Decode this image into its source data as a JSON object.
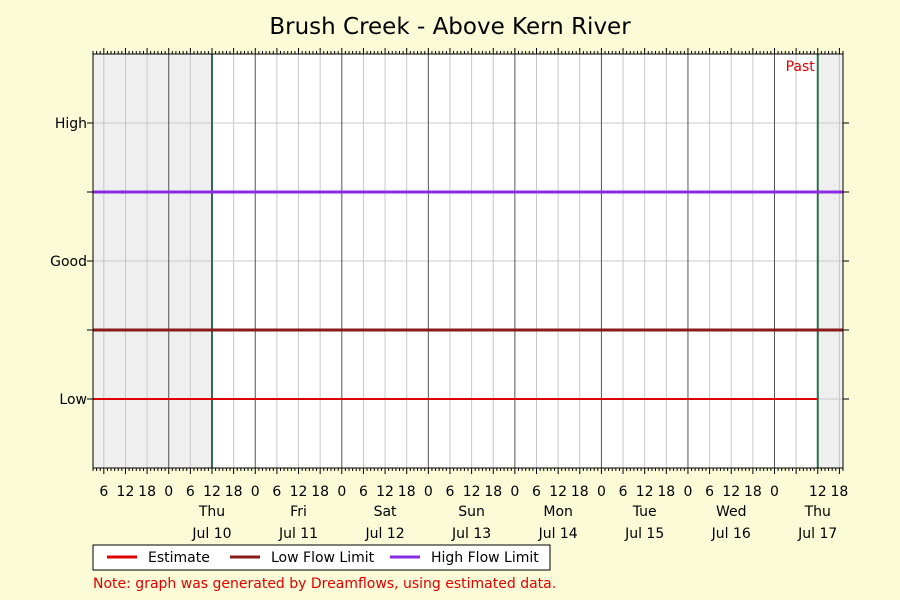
{
  "chart_data": {
    "type": "line",
    "title": "Brush Creek - Above Kern River",
    "x_axis": {
      "unit": "hours",
      "start": "2025-07-09T03:00",
      "end": "2025-07-17T19:00",
      "major_ticks": [
        "6",
        "12",
        "18",
        "0",
        "6",
        "12",
        "18",
        "0",
        "6",
        "12",
        "18",
        "0",
        "6",
        "12",
        "18",
        "0",
        "6",
        "12",
        "18",
        "0",
        "6",
        "12",
        "18",
        "0",
        "6",
        "12",
        "18",
        "0",
        "6",
        "12",
        "18",
        "0",
        "12",
        "18"
      ],
      "day_labels": [
        {
          "weekday": "Thu",
          "date": "Jul 10"
        },
        {
          "weekday": "Fri",
          "date": "Jul 11"
        },
        {
          "weekday": "Sat",
          "date": "Jul 12"
        },
        {
          "weekday": "Sun",
          "date": "Jul 13"
        },
        {
          "weekday": "Mon",
          "date": "Jul 14"
        },
        {
          "weekday": "Tue",
          "date": "Jul 15"
        },
        {
          "weekday": "Wed",
          "date": "Jul 16"
        },
        {
          "weekday": "Thu",
          "date": "Jul 17"
        }
      ]
    },
    "y_axis": {
      "categories": [
        "Low",
        "Good",
        "High"
      ],
      "range": [
        0,
        6
      ],
      "category_positions": [
        1,
        3,
        5
      ]
    },
    "shaded_regions": [
      {
        "from": "2025-07-09T03:00",
        "to": "2025-07-10T12:00"
      },
      {
        "from": "2025-07-17T12:00",
        "to": "2025-07-17T19:00"
      }
    ],
    "markers": [
      {
        "at": "2025-07-10T12:00",
        "color": "#2f6b4f"
      },
      {
        "at": "2025-07-17T12:00",
        "color": "#2f6b4f"
      }
    ],
    "series": [
      {
        "name": "Estimate",
        "color": "#dd0000",
        "x": [
          "2025-07-09T03:00",
          "2025-07-17T12:00"
        ],
        "y": [
          1,
          1
        ]
      },
      {
        "name": "Low Flow Limit",
        "color": "#8b1a1a",
        "x": [
          "2025-07-09T03:00",
          "2025-07-17T19:00"
        ],
        "y": [
          2,
          2
        ]
      },
      {
        "name": "High Flow Limit",
        "color": "#8a2be2",
        "x": [
          "2025-07-09T03:00",
          "2025-07-17T19:00"
        ],
        "y": [
          4,
          4
        ]
      }
    ],
    "annotation": {
      "text": "Past",
      "color": "#e00000"
    },
    "grid": true,
    "legend_position": "bottom-left",
    "note": "Note: graph was generated by Dreamflows, using estimated data."
  }
}
